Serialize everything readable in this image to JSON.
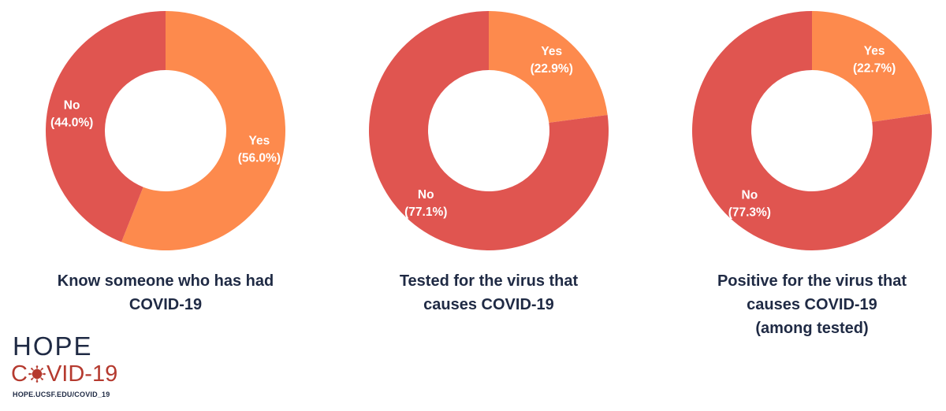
{
  "colors": {
    "yes": "#fd8a4d",
    "no": "#e05550",
    "title": "#1f2a44",
    "brand_red": "#b53a2f"
  },
  "chart_data": [
    {
      "type": "pie",
      "style": "donut",
      "title": [
        "Know someone who has had",
        "COVID-19"
      ],
      "slices": [
        {
          "label": "Yes",
          "value": 56.0,
          "display": "(56.0%)"
        },
        {
          "label": "No",
          "value": 44.0,
          "display": "(44.0%)"
        }
      ]
    },
    {
      "type": "pie",
      "style": "donut",
      "title": [
        "Tested for the virus that",
        "causes COVID-19"
      ],
      "slices": [
        {
          "label": "Yes",
          "value": 22.9,
          "display": "(22.9%)"
        },
        {
          "label": "No",
          "value": 77.1,
          "display": "(77.1%)"
        }
      ]
    },
    {
      "type": "pie",
      "style": "donut",
      "title": [
        "Positive for the virus that",
        "causes COVID-19",
        "(among tested)"
      ],
      "slices": [
        {
          "label": "Yes",
          "value": 22.7,
          "display": "(22.7%)"
        },
        {
          "label": "No",
          "value": 77.3,
          "display": "(77.3%)"
        }
      ]
    }
  ],
  "logo": {
    "hope": "HOPE",
    "covid_prefix": "C",
    "covid_suffix": "VID-19",
    "url": "HOPE.UCSF.EDU/COVID_19"
  }
}
